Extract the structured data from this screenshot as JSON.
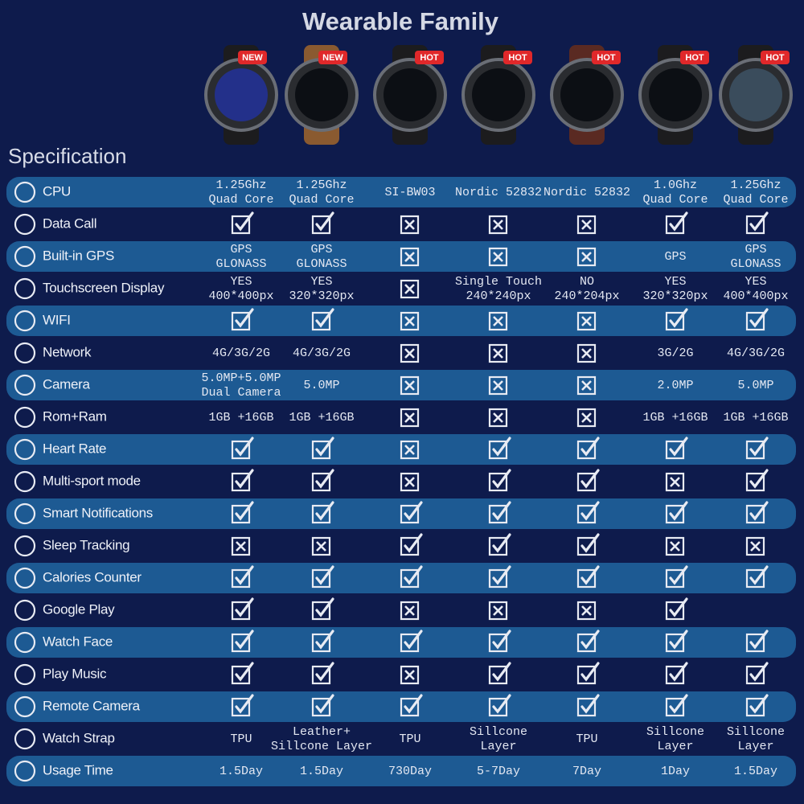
{
  "header": {
    "title": "Wearable Family",
    "badges": [
      "NEW",
      "NEW",
      "HOT",
      "HOT",
      "HOT",
      "HOT",
      "HOT"
    ]
  },
  "table": {
    "heading": "Specification",
    "rows": [
      {
        "label": "CPU",
        "cells": [
          [
            "1.25Ghz",
            "Quad Core"
          ],
          [
            "1.25Ghz",
            "Quad Core"
          ],
          [
            "SI-BW03"
          ],
          [
            "Nordic 52832"
          ],
          [
            "Nordic 52832"
          ],
          [
            "1.0Ghz",
            "Quad Core"
          ],
          [
            "1.25Ghz",
            "Quad Core"
          ]
        ]
      },
      {
        "label": "Data Call",
        "cells": [
          true,
          true,
          false,
          false,
          false,
          true,
          true
        ]
      },
      {
        "label": "Built-in GPS",
        "cells": [
          [
            "GPS",
            "GLONASS"
          ],
          [
            "GPS",
            "GLONASS"
          ],
          false,
          false,
          false,
          [
            "GPS"
          ],
          [
            "GPS",
            "GLONASS"
          ]
        ]
      },
      {
        "label": "Touchscreen Display",
        "cells": [
          [
            "YES",
            "400*400px"
          ],
          [
            "YES",
            "320*320px"
          ],
          false,
          [
            "Single Touch",
            "240*240px"
          ],
          [
            "NO",
            "240*204px"
          ],
          [
            "YES",
            "320*320px"
          ],
          [
            "YES",
            "400*400px"
          ]
        ]
      },
      {
        "label": "WIFI",
        "cells": [
          true,
          true,
          false,
          false,
          false,
          true,
          true
        ]
      },
      {
        "label": "Network",
        "cells": [
          [
            "4G/3G/2G"
          ],
          [
            "4G/3G/2G"
          ],
          false,
          false,
          false,
          [
            "3G/2G"
          ],
          [
            "4G/3G/2G"
          ]
        ]
      },
      {
        "label": "Camera",
        "cells": [
          [
            "5.0MP+5.0MP",
            "Dual Camera"
          ],
          [
            "5.0MP"
          ],
          false,
          false,
          false,
          [
            "2.0MP"
          ],
          [
            "5.0MP"
          ]
        ]
      },
      {
        "label": "Rom+Ram",
        "cells": [
          [
            "1GB +16GB"
          ],
          [
            "1GB +16GB"
          ],
          false,
          false,
          false,
          [
            "1GB +16GB"
          ],
          [
            "1GB +16GB"
          ]
        ]
      },
      {
        "label": "Heart Rate",
        "cells": [
          true,
          true,
          false,
          true,
          true,
          true,
          true
        ]
      },
      {
        "label": "Multi-sport mode",
        "cells": [
          true,
          true,
          false,
          true,
          true,
          false,
          true
        ]
      },
      {
        "label": "Smart Notifications",
        "cells": [
          true,
          true,
          true,
          true,
          true,
          true,
          true
        ]
      },
      {
        "label": "Sleep Tracking",
        "cells": [
          false,
          false,
          true,
          true,
          true,
          false,
          false
        ]
      },
      {
        "label": "Calories Counter",
        "cells": [
          true,
          true,
          true,
          true,
          true,
          true,
          true
        ]
      },
      {
        "label": "Google Play",
        "cells": [
          true,
          true,
          false,
          false,
          false,
          true,
          null
        ]
      },
      {
        "label": "Watch Face",
        "cells": [
          true,
          true,
          true,
          true,
          true,
          true,
          true
        ]
      },
      {
        "label": "Play Music",
        "cells": [
          true,
          true,
          false,
          true,
          true,
          true,
          true
        ]
      },
      {
        "label": "Remote Camera",
        "cells": [
          true,
          true,
          true,
          true,
          true,
          true,
          true
        ]
      },
      {
        "label": "Watch Strap",
        "cells": [
          [
            "TPU"
          ],
          [
            "Leather+",
            "Sillcone Layer"
          ],
          [
            "TPU"
          ],
          [
            "Sillcone",
            "Layer"
          ],
          [
            "TPU"
          ],
          [
            "Sillcone",
            "Layer"
          ],
          [
            "Sillcone",
            "Layer"
          ]
        ]
      },
      {
        "label": "Usage Time",
        "cells": [
          [
            "1.5Day"
          ],
          [
            "1.5Day"
          ],
          [
            "730Day"
          ],
          [
            "5-7Day"
          ],
          [
            "7Day"
          ],
          [
            "1Day"
          ],
          [
            "1.5Day"
          ]
        ]
      }
    ]
  }
}
